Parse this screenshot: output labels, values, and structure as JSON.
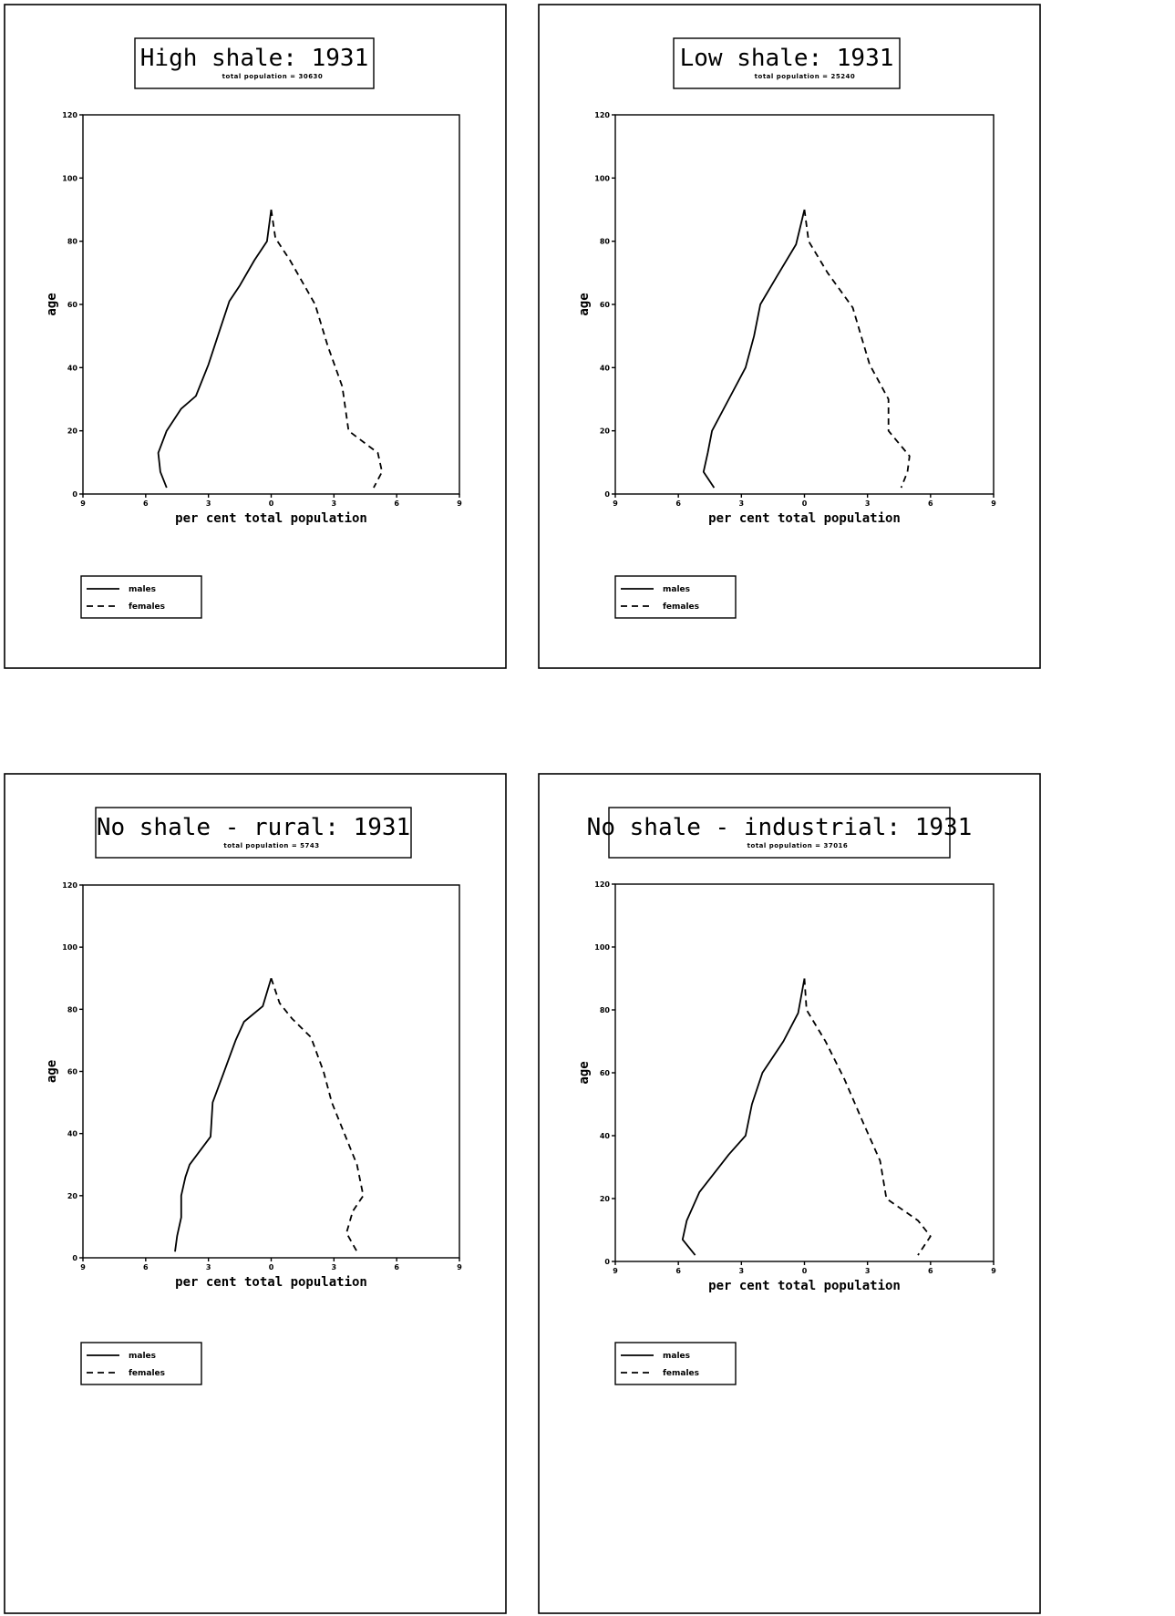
{
  "chart_data": [
    {
      "type": "line",
      "title": "High shale:  1931",
      "subtitle": "total population = 30630",
      "xlabel": "per cent total population",
      "ylabel": "age",
      "x_tick_labels": [
        "9",
        "6",
        "3",
        "0",
        "3",
        "6",
        "9"
      ],
      "y_tick_labels": [
        "0",
        "20",
        "40",
        "60",
        "80",
        "100",
        "120"
      ],
      "xlim": [
        -9,
        9
      ],
      "ylim": [
        0,
        120
      ],
      "legend": [
        "males",
        "females"
      ],
      "legend_position": "bottom-left",
      "series": [
        {
          "name": "males",
          "style": "solid",
          "points": [
            [
              -5.0,
              2
            ],
            [
              -5.3,
              7
            ],
            [
              -5.4,
              13
            ],
            [
              -5.0,
              20
            ],
            [
              -4.3,
              27
            ],
            [
              -3.6,
              31
            ],
            [
              -3.0,
              41
            ],
            [
              -2.5,
              51
            ],
            [
              -2.0,
              61
            ],
            [
              -1.5,
              66
            ],
            [
              -0.8,
              74
            ],
            [
              -0.2,
              80
            ],
            [
              0.0,
              90
            ]
          ]
        },
        {
          "name": "females",
          "style": "dashed",
          "points": [
            [
              0.0,
              90
            ],
            [
              0.2,
              81
            ],
            [
              0.9,
              74
            ],
            [
              2.1,
              60
            ],
            [
              2.7,
              47
            ],
            [
              3.4,
              34
            ],
            [
              3.7,
              20
            ],
            [
              5.1,
              13
            ],
            [
              5.3,
              7
            ],
            [
              4.9,
              2
            ]
          ]
        }
      ]
    },
    {
      "type": "line",
      "title": "Low shale:  1931",
      "subtitle": "total population = 25240",
      "xlabel": "per cent total population",
      "ylabel": "age",
      "x_tick_labels": [
        "9",
        "6",
        "3",
        "0",
        "3",
        "6",
        "9"
      ],
      "y_tick_labels": [
        "0",
        "20",
        "40",
        "60",
        "80",
        "100",
        "120"
      ],
      "xlim": [
        -9,
        9
      ],
      "ylim": [
        0,
        120
      ],
      "legend": [
        "males",
        "females"
      ],
      "legend_position": "bottom-left",
      "series": [
        {
          "name": "males",
          "style": "solid",
          "points": [
            [
              -4.3,
              2
            ],
            [
              -4.8,
              7
            ],
            [
              -4.6,
              13
            ],
            [
              -4.4,
              20
            ],
            [
              -3.6,
              30
            ],
            [
              -2.8,
              40
            ],
            [
              -2.4,
              50
            ],
            [
              -2.1,
              60
            ],
            [
              -1.3,
              69
            ],
            [
              -0.4,
              79
            ],
            [
              0.0,
              90
            ]
          ]
        },
        {
          "name": "females",
          "style": "dashed",
          "points": [
            [
              0.0,
              90
            ],
            [
              0.2,
              80
            ],
            [
              1.1,
              70
            ],
            [
              2.3,
              59
            ],
            [
              2.7,
              50
            ],
            [
              3.1,
              41
            ],
            [
              4.0,
              30
            ],
            [
              4.0,
              20
            ],
            [
              5.0,
              12
            ],
            [
              4.9,
              7
            ],
            [
              4.6,
              2
            ]
          ]
        }
      ]
    },
    {
      "type": "line",
      "title": "No shale - rural:  1931",
      "subtitle": "total population = 5743",
      "xlabel": "per cent total population",
      "ylabel": "age",
      "x_tick_labels": [
        "9",
        "6",
        "3",
        "0",
        "3",
        "6",
        "9"
      ],
      "y_tick_labels": [
        "0",
        "20",
        "40",
        "60",
        "80",
        "100",
        "120"
      ],
      "xlim": [
        -9,
        9
      ],
      "ylim": [
        0,
        120
      ],
      "legend": [
        "males",
        "females"
      ],
      "legend_position": "bottom-left",
      "series": [
        {
          "name": "males",
          "style": "solid",
          "points": [
            [
              -4.6,
              2
            ],
            [
              -4.5,
              7
            ],
            [
              -4.3,
              13
            ],
            [
              -4.3,
              20
            ],
            [
              -4.1,
              26
            ],
            [
              -3.9,
              30
            ],
            [
              -2.9,
              39
            ],
            [
              -2.8,
              50
            ],
            [
              -2.3,
              59
            ],
            [
              -1.7,
              70
            ],
            [
              -1.3,
              76
            ],
            [
              -0.4,
              81
            ],
            [
              0.0,
              90
            ]
          ]
        },
        {
          "name": "females",
          "style": "dashed",
          "points": [
            [
              0.0,
              90
            ],
            [
              0.4,
              82
            ],
            [
              1.0,
              77
            ],
            [
              1.9,
              71
            ],
            [
              2.5,
              60
            ],
            [
              2.9,
              50
            ],
            [
              3.5,
              40
            ],
            [
              4.1,
              30
            ],
            [
              4.4,
              20
            ],
            [
              3.9,
              15
            ],
            [
              3.6,
              8
            ],
            [
              4.1,
              2
            ]
          ]
        }
      ]
    },
    {
      "type": "line",
      "title": "No shale - industrial:  1931",
      "subtitle": "total population = 37016",
      "xlabel": "per cent total population",
      "ylabel": "age",
      "x_tick_labels": [
        "9",
        "6",
        "3",
        "0",
        "3",
        "6",
        "9"
      ],
      "y_tick_labels": [
        "0",
        "20",
        "40",
        "60",
        "80",
        "100",
        "120"
      ],
      "xlim": [
        -9,
        9
      ],
      "ylim": [
        0,
        120
      ],
      "legend": [
        "males",
        "females"
      ],
      "legend_position": "bottom-left",
      "series": [
        {
          "name": "males",
          "style": "solid",
          "points": [
            [
              -5.2,
              2
            ],
            [
              -5.8,
              7
            ],
            [
              -5.6,
              13
            ],
            [
              -5.0,
              22
            ],
            [
              -3.6,
              34
            ],
            [
              -2.8,
              40
            ],
            [
              -2.5,
              50
            ],
            [
              -2.0,
              60
            ],
            [
              -1.0,
              70
            ],
            [
              -0.3,
              79
            ],
            [
              0.0,
              90
            ]
          ]
        },
        {
          "name": "females",
          "style": "dashed",
          "points": [
            [
              0.0,
              90
            ],
            [
              0.1,
              80
            ],
            [
              1.0,
              70
            ],
            [
              1.9,
              58
            ],
            [
              2.8,
              44
            ],
            [
              3.6,
              32
            ],
            [
              3.9,
              20
            ],
            [
              5.4,
              13
            ],
            [
              6.0,
              8
            ],
            [
              5.4,
              2
            ]
          ]
        }
      ]
    }
  ]
}
